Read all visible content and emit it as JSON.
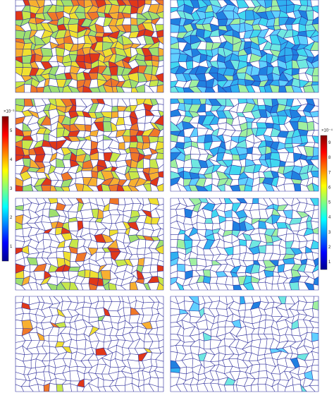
{
  "left_colorbar": {
    "exponent": "×10⁻³",
    "ticks": [
      "5",
      "4",
      "3",
      "2",
      "1"
    ]
  },
  "right_colorbar": {
    "exponent": "×10⁻⁴",
    "ticks": [
      "9",
      "8",
      "7",
      "6",
      "5",
      "4",
      "3",
      "2",
      "1"
    ]
  }
}
